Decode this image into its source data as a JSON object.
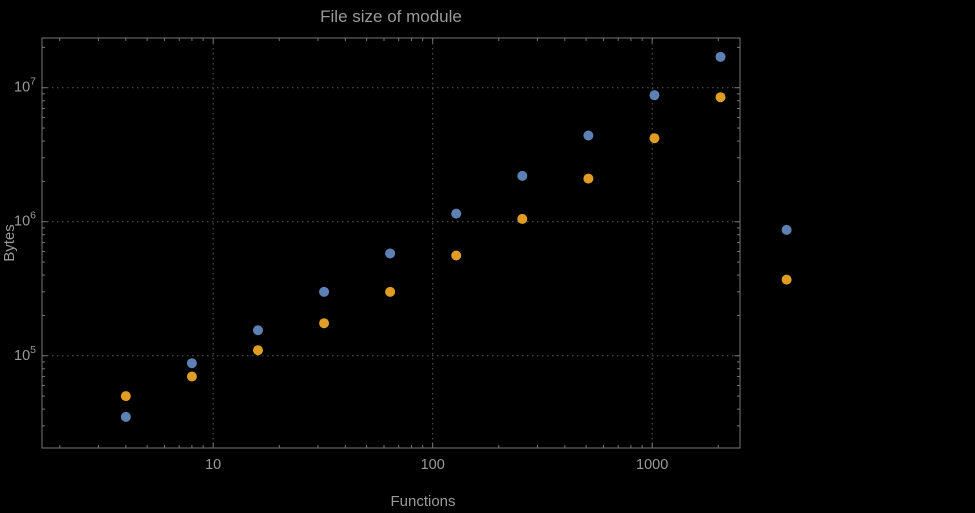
{
  "page": {
    "background_color": "#000000",
    "text_color": "#9a9a9a",
    "frame_color": "#767676",
    "grid_color": "#5a5a5a"
  },
  "chart_data": {
    "type": "scatter",
    "title": "File size of module",
    "xlabel": "Functions",
    "ylabel": "Bytes",
    "x_scale": "log",
    "y_scale": "log",
    "grid": "dotted",
    "legend": "none",
    "xlim": [
      1.66,
      2512
    ],
    "ylim": [
      20500,
      23500000
    ],
    "x_major_ticks": [
      10,
      100,
      1000
    ],
    "x_major_tick_labels": [
      "10",
      "100",
      "1000"
    ],
    "y_major_ticks": [
      100000,
      1000000,
      10000000
    ],
    "y_major_tick_exponents": [
      5,
      6,
      7
    ],
    "x": [
      4,
      8,
      16,
      32,
      64,
      128,
      256,
      512,
      1024,
      2048,
      4096
    ],
    "series": [
      {
        "name": "blue-series",
        "color": "#5e81b5",
        "values": [
          35000,
          88000,
          155000,
          300000,
          580000,
          1150000,
          2200000,
          4400000,
          8800000,
          17000000,
          870000
        ]
      },
      {
        "name": "orange-series",
        "color": "#e19c24",
        "values": [
          50000,
          70000,
          110000,
          175000,
          300000,
          560000,
          1050000,
          2100000,
          4200000,
          8500000,
          370000
        ]
      }
    ]
  }
}
